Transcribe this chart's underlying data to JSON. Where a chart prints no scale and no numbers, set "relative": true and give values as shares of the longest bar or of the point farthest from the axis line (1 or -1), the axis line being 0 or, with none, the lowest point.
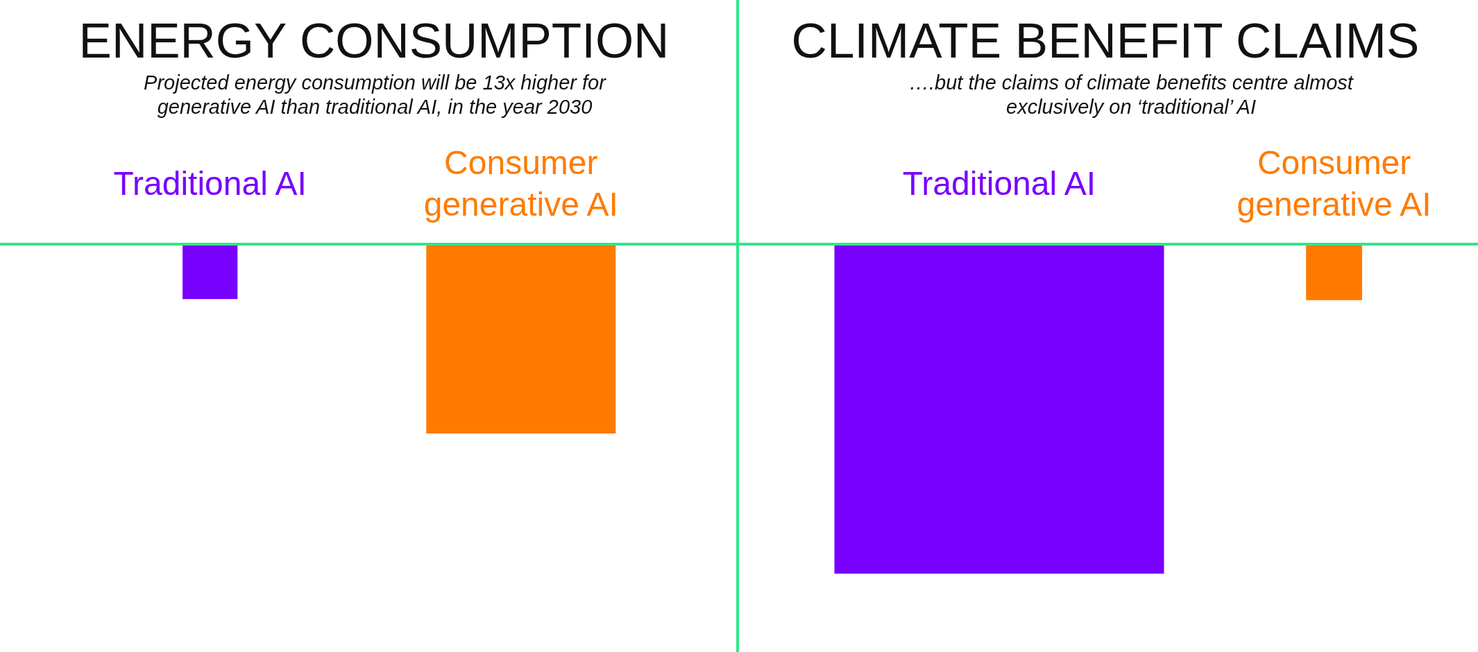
{
  "chart_data": [
    {
      "type": "bar",
      "title": "ENERGY CONSUMPTION",
      "subtitle": "Projected energy consumption will be 13x higher for generative AI than traditional AI, in the year 2030",
      "categories": [
        "Traditional AI",
        "Consumer generative AI"
      ],
      "values": [
        -0.29,
        -1
      ],
      "colors": [
        "#7700ff",
        "#ff7b00"
      ],
      "relative": true
    },
    {
      "type": "bar",
      "title": "CLIMATE BENEFIT CLAIMS",
      "subtitle": "….but the claims of climate benefits centre almost exclusively on ‘traditional’ AI",
      "categories": [
        "Traditional AI",
        "Consumer generative AI"
      ],
      "values": [
        -1,
        -0.17
      ],
      "colors": [
        "#7700ff",
        "#ff7b00"
      ],
      "relative": true
    }
  ]
}
